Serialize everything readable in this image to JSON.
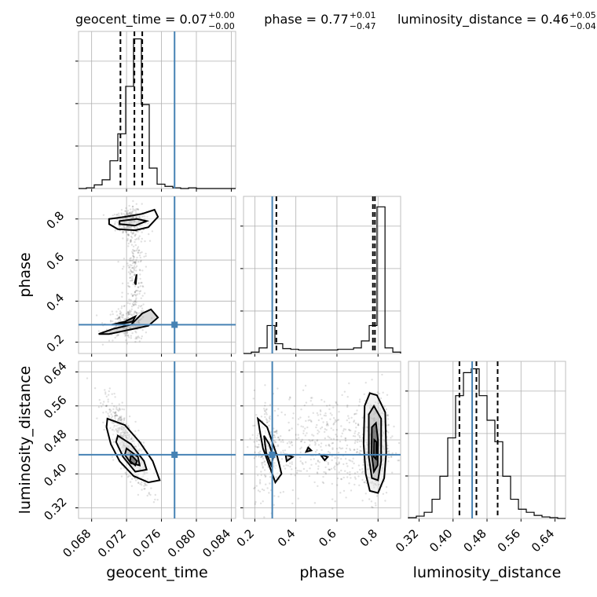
{
  "chart_data": {
    "type": "corner",
    "parameters": [
      "geocent_time",
      "phase",
      "luminosity_distance"
    ],
    "titles": {
      "geocent_time": {
        "name": "geocent_time",
        "value": "0.07",
        "plus": "+0.00",
        "minus": "−0.00"
      },
      "phase": {
        "name": "phase",
        "value": "0.77",
        "plus": "+0.01",
        "minus": "−0.47"
      },
      "luminosity_distance": {
        "name": "luminosity_distance",
        "value": "0.46",
        "plus": "+0.05",
        "minus": "−0.04"
      }
    },
    "axes": {
      "geocent_time": {
        "range": [
          0.0665,
          0.0845
        ],
        "ticks": [
          0.068,
          0.072,
          0.076,
          0.08,
          0.084
        ],
        "tick_labels": [
          "0.068",
          "0.072",
          "0.076",
          "0.080",
          "0.084"
        ]
      },
      "phase": {
        "range": [
          0.145,
          0.91
        ],
        "ticks": [
          0.2,
          0.4,
          0.6,
          0.8
        ],
        "tick_labels": [
          "0.2",
          "0.4",
          "0.6",
          "0.8"
        ]
      },
      "luminosity_distance": {
        "range": [
          0.295,
          0.665
        ],
        "ticks": [
          0.32,
          0.4,
          0.48,
          0.56,
          0.64
        ],
        "tick_labels": [
          "0.32",
          "0.40",
          "0.48",
          "0.56",
          "0.64"
        ]
      }
    },
    "truths": {
      "geocent_time": 0.0775,
      "phase": 0.285,
      "luminosity_distance": 0.445
    },
    "quantiles": {
      "geocent_time": [
        0.0713,
        0.0729,
        0.0738
      ],
      "phase": [
        0.305,
        0.775,
        0.785
      ],
      "luminosity_distance": [
        0.415,
        0.455,
        0.505
      ]
    },
    "histograms": {
      "geocent_time": {
        "edges": [
          0.0665,
          0.0674,
          0.0683,
          0.0692,
          0.0701,
          0.071,
          0.0719,
          0.0728,
          0.0737,
          0.0746,
          0.0755,
          0.0764,
          0.0773,
          0.0782,
          0.0791,
          0.08,
          0.0809,
          0.0818,
          0.0827,
          0.0836,
          0.0845
        ],
        "counts": [
          0,
          1,
          5,
          12,
          38,
          75,
          140,
          205,
          115,
          28,
          6,
          3,
          1,
          0,
          1,
          0,
          0,
          0,
          0,
          0
        ]
      },
      "phase": {
        "edges": [
          0.145,
          0.183,
          0.221,
          0.26,
          0.298,
          0.336,
          0.375,
          0.413,
          0.451,
          0.489,
          0.528,
          0.566,
          0.604,
          0.642,
          0.681,
          0.719,
          0.757,
          0.795,
          0.834,
          0.872,
          0.91
        ],
        "counts": [
          0,
          2,
          8,
          40,
          14,
          7,
          6,
          5,
          5,
          5,
          5,
          5,
          6,
          6,
          8,
          18,
          40,
          210,
          8,
          2
        ],
        "ylim": [
          0,
          225
        ]
      },
      "luminosity_distance": {
        "edges": [
          0.295,
          0.3135,
          0.332,
          0.3505,
          0.369,
          0.3875,
          0.406,
          0.4245,
          0.443,
          0.4615,
          0.48,
          0.4985,
          0.517,
          0.5355,
          0.554,
          0.5725,
          0.591,
          0.6095,
          0.628,
          0.6465,
          0.665
        ],
        "counts": [
          1,
          3,
          8,
          25,
          55,
          105,
          160,
          190,
          195,
          160,
          128,
          100,
          55,
          25,
          12,
          8,
          4,
          2,
          1,
          0
        ]
      }
    },
    "contours": {
      "phase_vs_geocent_time": [
        [
          [
            0.07,
            0.8
          ],
          [
            0.0718,
            0.81
          ],
          [
            0.0738,
            0.825
          ],
          [
            0.0752,
            0.845
          ],
          [
            0.0756,
            0.81
          ],
          [
            0.0745,
            0.76
          ],
          [
            0.073,
            0.745
          ],
          [
            0.071,
            0.75
          ],
          [
            0.07,
            0.775
          ]
        ],
        [
          [
            0.0712,
            0.79
          ],
          [
            0.0732,
            0.8
          ],
          [
            0.0743,
            0.79
          ],
          [
            0.073,
            0.768
          ],
          [
            0.0712,
            0.775
          ]
        ],
        [
          [
            0.0688,
            0.24
          ],
          [
            0.0705,
            0.265
          ],
          [
            0.0725,
            0.285
          ],
          [
            0.0738,
            0.34
          ],
          [
            0.0748,
            0.36
          ],
          [
            0.0756,
            0.32
          ],
          [
            0.0745,
            0.28
          ],
          [
            0.0725,
            0.262
          ],
          [
            0.07,
            0.24
          ]
        ],
        [
          [
            0.0703,
            0.285
          ],
          [
            0.0718,
            0.3
          ],
          [
            0.073,
            0.325
          ],
          [
            0.0727,
            0.3
          ],
          [
            0.0712,
            0.288
          ]
        ],
        [
          [
            0.07295,
            0.49
          ],
          [
            0.07315,
            0.53
          ],
          [
            0.07305,
            0.48
          ]
        ]
      ],
      "luminosity_distance_vs_geocent_time": [
        [
          [
            0.0698,
            0.53
          ],
          [
            0.0718,
            0.515
          ],
          [
            0.0735,
            0.475
          ],
          [
            0.075,
            0.43
          ],
          [
            0.0758,
            0.385
          ],
          [
            0.0745,
            0.38
          ],
          [
            0.0728,
            0.395
          ],
          [
            0.0712,
            0.43
          ],
          [
            0.0702,
            0.47
          ],
          [
            0.0697,
            0.51
          ]
        ],
        [
          [
            0.071,
            0.49
          ],
          [
            0.0725,
            0.47
          ],
          [
            0.074,
            0.43
          ],
          [
            0.0743,
            0.41
          ],
          [
            0.073,
            0.405
          ],
          [
            0.0716,
            0.44
          ],
          [
            0.0708,
            0.475
          ]
        ],
        [
          [
            0.072,
            0.46
          ],
          [
            0.0733,
            0.44
          ],
          [
            0.0735,
            0.42
          ],
          [
            0.0725,
            0.425
          ],
          [
            0.0718,
            0.445
          ]
        ],
        [
          [
            0.0725,
            0.445
          ],
          [
            0.0732,
            0.43
          ],
          [
            0.073,
            0.42
          ],
          [
            0.0724,
            0.43
          ]
        ]
      ],
      "luminosity_distance_vs_phase": [
        [
          [
            0.215,
            0.53
          ],
          [
            0.26,
            0.51
          ],
          [
            0.285,
            0.475
          ],
          [
            0.31,
            0.44
          ],
          [
            0.33,
            0.4
          ],
          [
            0.3,
            0.38
          ],
          [
            0.27,
            0.42
          ],
          [
            0.24,
            0.46
          ],
          [
            0.225,
            0.5
          ]
        ],
        [
          [
            0.245,
            0.49
          ],
          [
            0.27,
            0.47
          ],
          [
            0.29,
            0.44
          ],
          [
            0.28,
            0.42
          ],
          [
            0.255,
            0.45
          ]
        ],
        [
          [
            0.35,
            0.445
          ],
          [
            0.385,
            0.44
          ],
          [
            0.355,
            0.43
          ]
        ],
        [
          [
            0.45,
            0.452
          ],
          [
            0.475,
            0.455
          ],
          [
            0.46,
            0.462
          ]
        ],
        [
          [
            0.52,
            0.445
          ],
          [
            0.555,
            0.44
          ],
          [
            0.54,
            0.432
          ]
        ],
        [
          [
            0.735,
            0.56
          ],
          [
            0.76,
            0.59
          ],
          [
            0.795,
            0.585
          ],
          [
            0.835,
            0.545
          ],
          [
            0.84,
            0.45
          ],
          [
            0.83,
            0.39
          ],
          [
            0.8,
            0.355
          ],
          [
            0.76,
            0.36
          ],
          [
            0.74,
            0.4
          ],
          [
            0.73,
            0.47
          ]
        ],
        [
          [
            0.755,
            0.54
          ],
          [
            0.78,
            0.56
          ],
          [
            0.815,
            0.53
          ],
          [
            0.815,
            0.43
          ],
          [
            0.8,
            0.385
          ],
          [
            0.77,
            0.39
          ],
          [
            0.755,
            0.44
          ]
        ],
        [
          [
            0.77,
            0.51
          ],
          [
            0.79,
            0.52
          ],
          [
            0.8,
            0.48
          ],
          [
            0.798,
            0.42
          ],
          [
            0.78,
            0.405
          ],
          [
            0.768,
            0.45
          ]
        ],
        [
          [
            0.782,
            0.48
          ],
          [
            0.792,
            0.475
          ],
          [
            0.79,
            0.435
          ],
          [
            0.78,
            0.44
          ]
        ]
      ]
    },
    "axis_labels": {
      "x": [
        "geocent_time",
        "phase",
        "luminosity_distance"
      ],
      "y": [
        "phase",
        "luminosity_distance"
      ]
    },
    "colors": {
      "truth": "#4682b4",
      "line": "#000000",
      "grid": "#b0b0b0",
      "frame": "#bfbfbf"
    },
    "grid": true
  }
}
